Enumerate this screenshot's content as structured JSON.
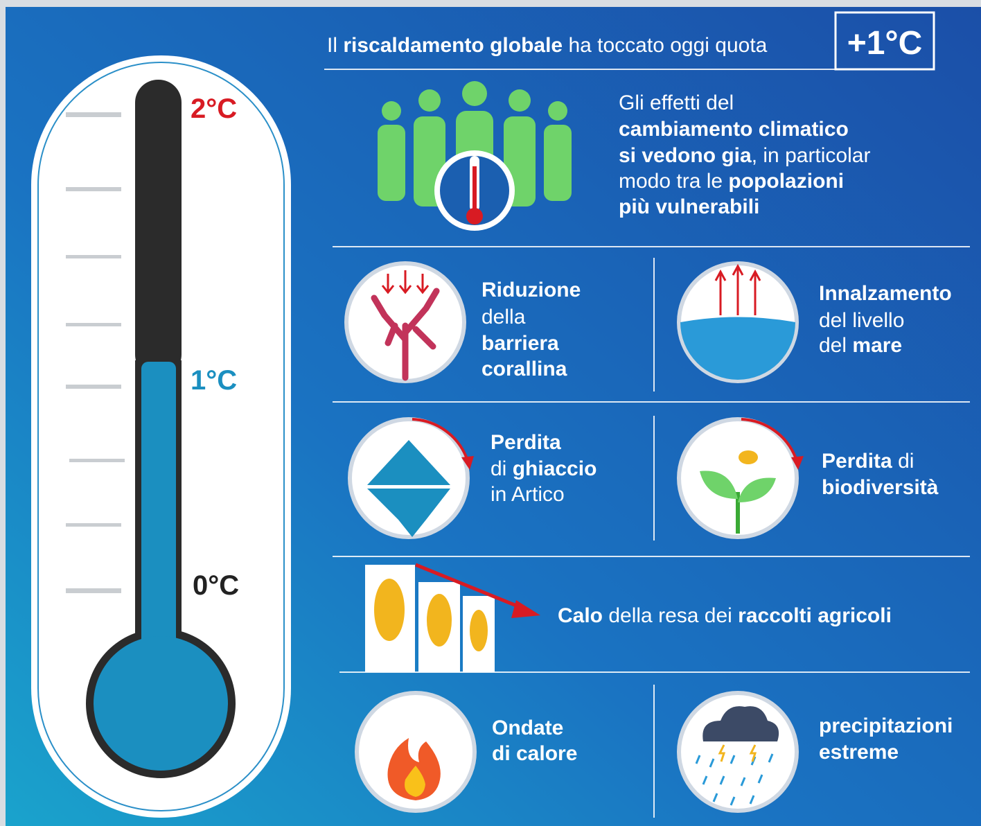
{
  "header": {
    "lead": "Il",
    "bold": "riscaldamento globale",
    "rest": "ha toccato oggi quota",
    "value": "+1°C"
  },
  "thermometer": {
    "labels": [
      "2°C",
      "1°C",
      "0°C"
    ]
  },
  "intro": {
    "lines": [
      [
        "Gli effetti del"
      ],
      [
        "cambiamento climatico"
      ],
      [
        "si vedono gia",
        ", in particolar"
      ],
      [
        "modo tra le",
        "popolazioni"
      ],
      [
        "più vulnerabili"
      ]
    ]
  },
  "effects": [
    {
      "lines": [
        [
          "Riduzione"
        ],
        [
          "della"
        ],
        [
          "barriera"
        ],
        [
          "corallina"
        ]
      ]
    },
    {
      "lines": [
        [
          "Innalzamento"
        ],
        [
          "del livello"
        ],
        [
          "del",
          "mare"
        ]
      ]
    },
    {
      "lines": [
        [
          "Perdita"
        ],
        [
          "di",
          "ghiaccio"
        ],
        [
          "in Artico"
        ]
      ]
    },
    {
      "lines": [
        [
          "Perdita",
          "di"
        ],
        [
          "biodiversità"
        ]
      ]
    },
    {
      "lines": [
        [
          "Calo",
          "della resa dei",
          "raccolti agricoli"
        ]
      ]
    },
    {
      "lines": [
        [
          "Ondate"
        ],
        [
          "di calore"
        ]
      ]
    },
    {
      "lines": [
        [
          "precipitazioni"
        ],
        [
          "estreme"
        ]
      ]
    }
  ]
}
